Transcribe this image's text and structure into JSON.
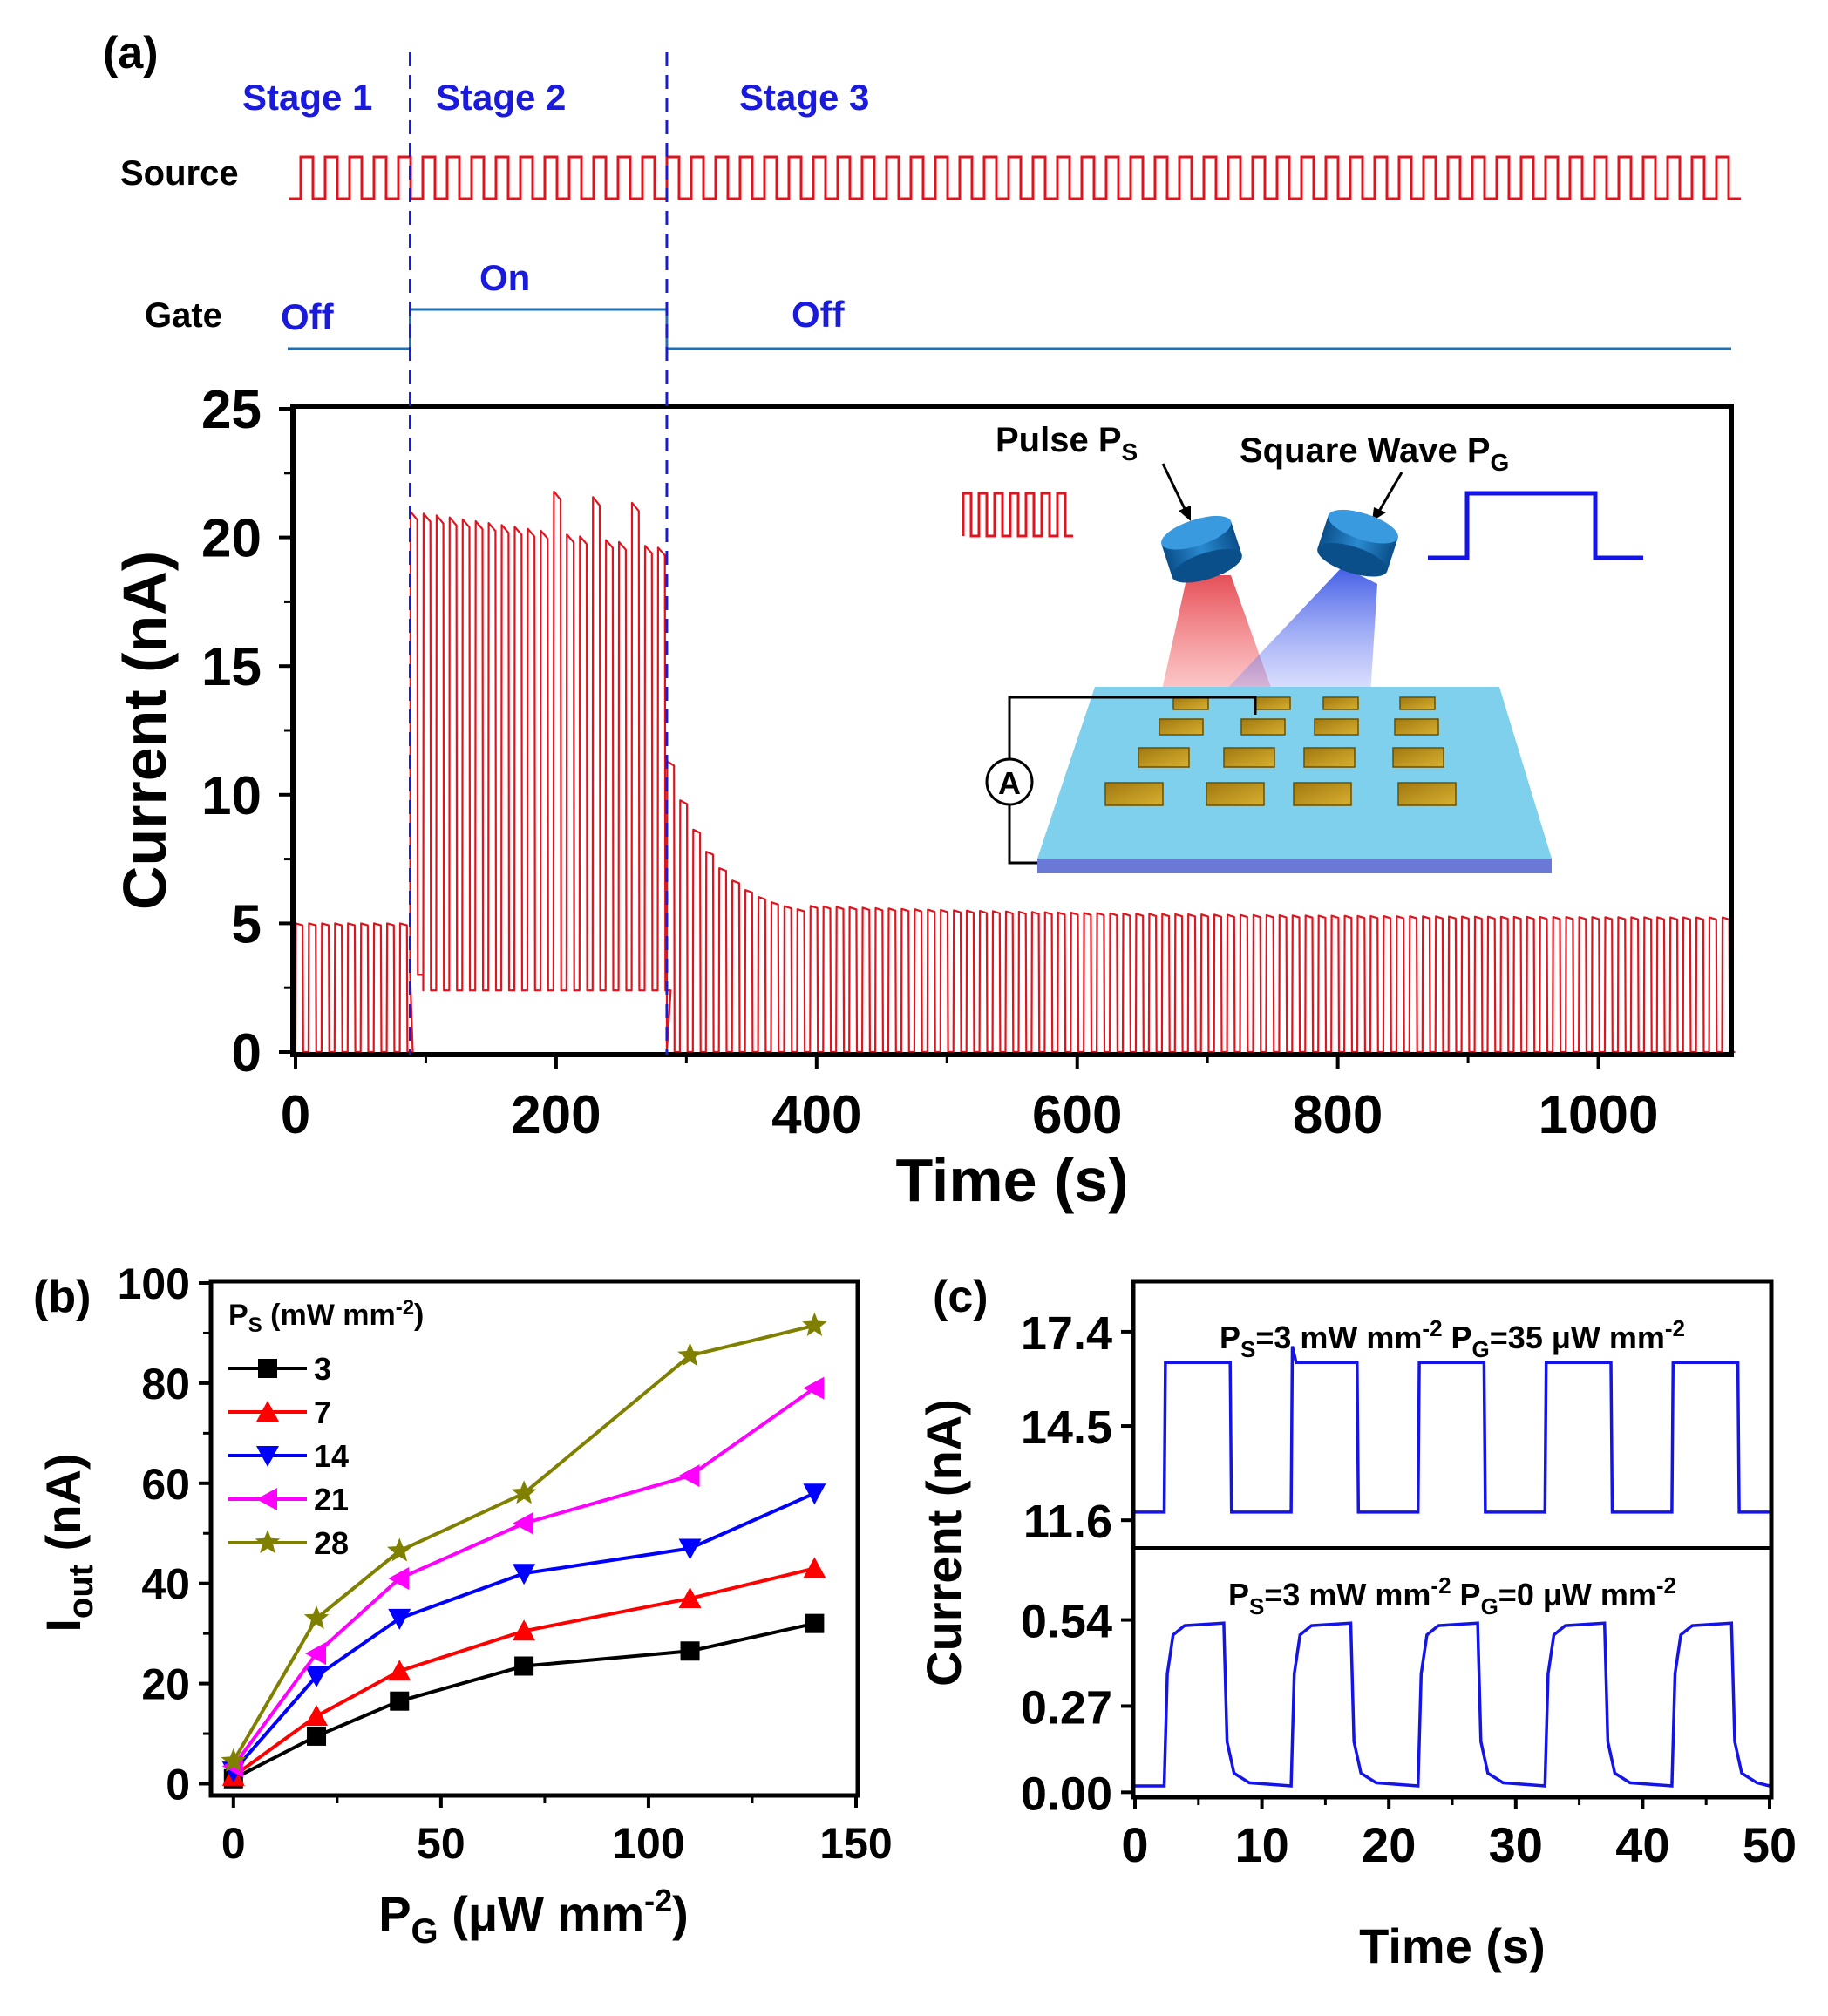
{
  "panels": {
    "a": {
      "label": "(a)",
      "stages": [
        "Stage 1",
        "Stage 2",
        "Stage 3"
      ],
      "source_label": "Source",
      "gate_label": "Gate",
      "gate_states": [
        "Off",
        "On",
        "Off"
      ],
      "inset": {
        "pulse_label": "Pulse P",
        "pulse_sub": "S",
        "square_label": "Square Wave P",
        "square_sub": "G",
        "ammeter": "A"
      }
    },
    "b": {
      "label": "(b)"
    },
    "c": {
      "label": "(c)"
    }
  },
  "colors": {
    "trace_red": "#e0141e",
    "stage_blue": "#1a1adc",
    "gate_blue": "#1f6fb4",
    "plot_blue": "#1414e6",
    "black": "#000000",
    "series_3": "#000000",
    "series_7": "#ff0000",
    "series_14": "#0000ff",
    "series_21": "#ff00ff",
    "series_28": "#808000"
  },
  "chart_data": [
    {
      "id": "a",
      "type": "line",
      "xlabel": "Time (s)",
      "ylabel": "Current (nA)",
      "xlim": [
        0,
        1100
      ],
      "ylim": [
        0,
        25
      ],
      "xticks": [
        0,
        200,
        400,
        600,
        800,
        1000
      ],
      "yticks": [
        0,
        5,
        10,
        15,
        20,
        25
      ],
      "stage_boundaries": [
        88,
        285
      ],
      "pulse_period_s": 10,
      "segments": [
        {
          "stage": "Stage 1",
          "x": [
            0,
            88
          ],
          "peak": 5.0,
          "base": 0.0
        },
        {
          "stage": "Stage 2",
          "x": [
            88,
            285
          ],
          "peak_start": 21.0,
          "peak_end": 19.6,
          "base": 2.4
        },
        {
          "stage": "Stage 3",
          "x": [
            285,
            1100
          ],
          "peak_start": 11.3,
          "peak_end": 5.2,
          "base": 0.0
        }
      ]
    },
    {
      "id": "b",
      "type": "line",
      "xlabel": "P",
      "xlabel_sub": "G",
      "xlabel_unit": " (μW mm",
      "xlabel_sup": "-2",
      "ylabel": "I",
      "ylabel_sub": "out",
      "ylabel_unit": " (nA)",
      "xlim": [
        -5,
        150
      ],
      "ylim": [
        -2,
        100
      ],
      "xticks": [
        0,
        50,
        100,
        150
      ],
      "yticks": [
        0,
        20,
        40,
        60,
        80,
        100
      ],
      "legend_title": "P",
      "legend_title_sub": "S",
      "legend_title_unit": " (mW mm",
      "legend_title_sup": "-2",
      "legend_title_end": ")",
      "legend_position": "top-left",
      "x": [
        0,
        20,
        40,
        70,
        110,
        140
      ],
      "series": [
        {
          "name": "3",
          "marker": "square",
          "values": [
            1,
            9.5,
            16.5,
            23.5,
            26.5,
            32
          ]
        },
        {
          "name": "7",
          "marker": "triangle-up",
          "values": [
            1.5,
            13.5,
            22.5,
            30.5,
            37,
            43
          ]
        },
        {
          "name": "14",
          "marker": "triangle-down",
          "values": [
            2.5,
            21.5,
            33,
            42,
            47,
            58
          ]
        },
        {
          "name": "21",
          "marker": "triangle-left",
          "values": [
            3.5,
            26,
            41,
            52,
            61.5,
            79
          ]
        },
        {
          "name": "28",
          "marker": "star",
          "values": [
            4.5,
            33,
            46.5,
            58,
            85.5,
            91.5
          ]
        }
      ]
    },
    {
      "id": "c",
      "type": "line",
      "xlabel": "Time (s)",
      "ylabel": "Current (nA)",
      "xlim": [
        0,
        50
      ],
      "xticks": [
        0,
        10,
        20,
        30,
        40,
        50
      ],
      "subplots": [
        {
          "position": "top",
          "ylim": [
            10.8,
            18.9
          ],
          "yticks": [
            11.6,
            14.5,
            17.4
          ],
          "yticklabels": [
            "11.6",
            "14.5",
            "17.4"
          ],
          "annotation": "P|S|=3 mW mm|-2| P|G|=35 μW mm|-2",
          "low": 11.85,
          "high": 16.45,
          "overshoot": 16.95,
          "pulses_on": [
            [
              2.3,
              7.5
            ],
            [
              12.3,
              17.5
            ],
            [
              22.3,
              27.5
            ],
            [
              32.3,
              37.5
            ],
            [
              42.3,
              47.5
            ]
          ]
        },
        {
          "position": "bottom",
          "ylim": [
            -0.01,
            0.76
          ],
          "yticks": [
            0.0,
            0.27,
            0.54
          ],
          "yticklabels": [
            "0.00",
            "0.27",
            "0.54"
          ],
          "annotation": "P|S|=3 mW mm|-2| P|G|=0 μW mm|-2",
          "low": 0.02,
          "high": 0.53,
          "pulses_on": [
            [
              2.3,
              7.0
            ],
            [
              12.3,
              17.0
            ],
            [
              22.3,
              27.0
            ],
            [
              32.3,
              37.0
            ],
            [
              42.3,
              47.0
            ]
          ]
        }
      ]
    }
  ]
}
